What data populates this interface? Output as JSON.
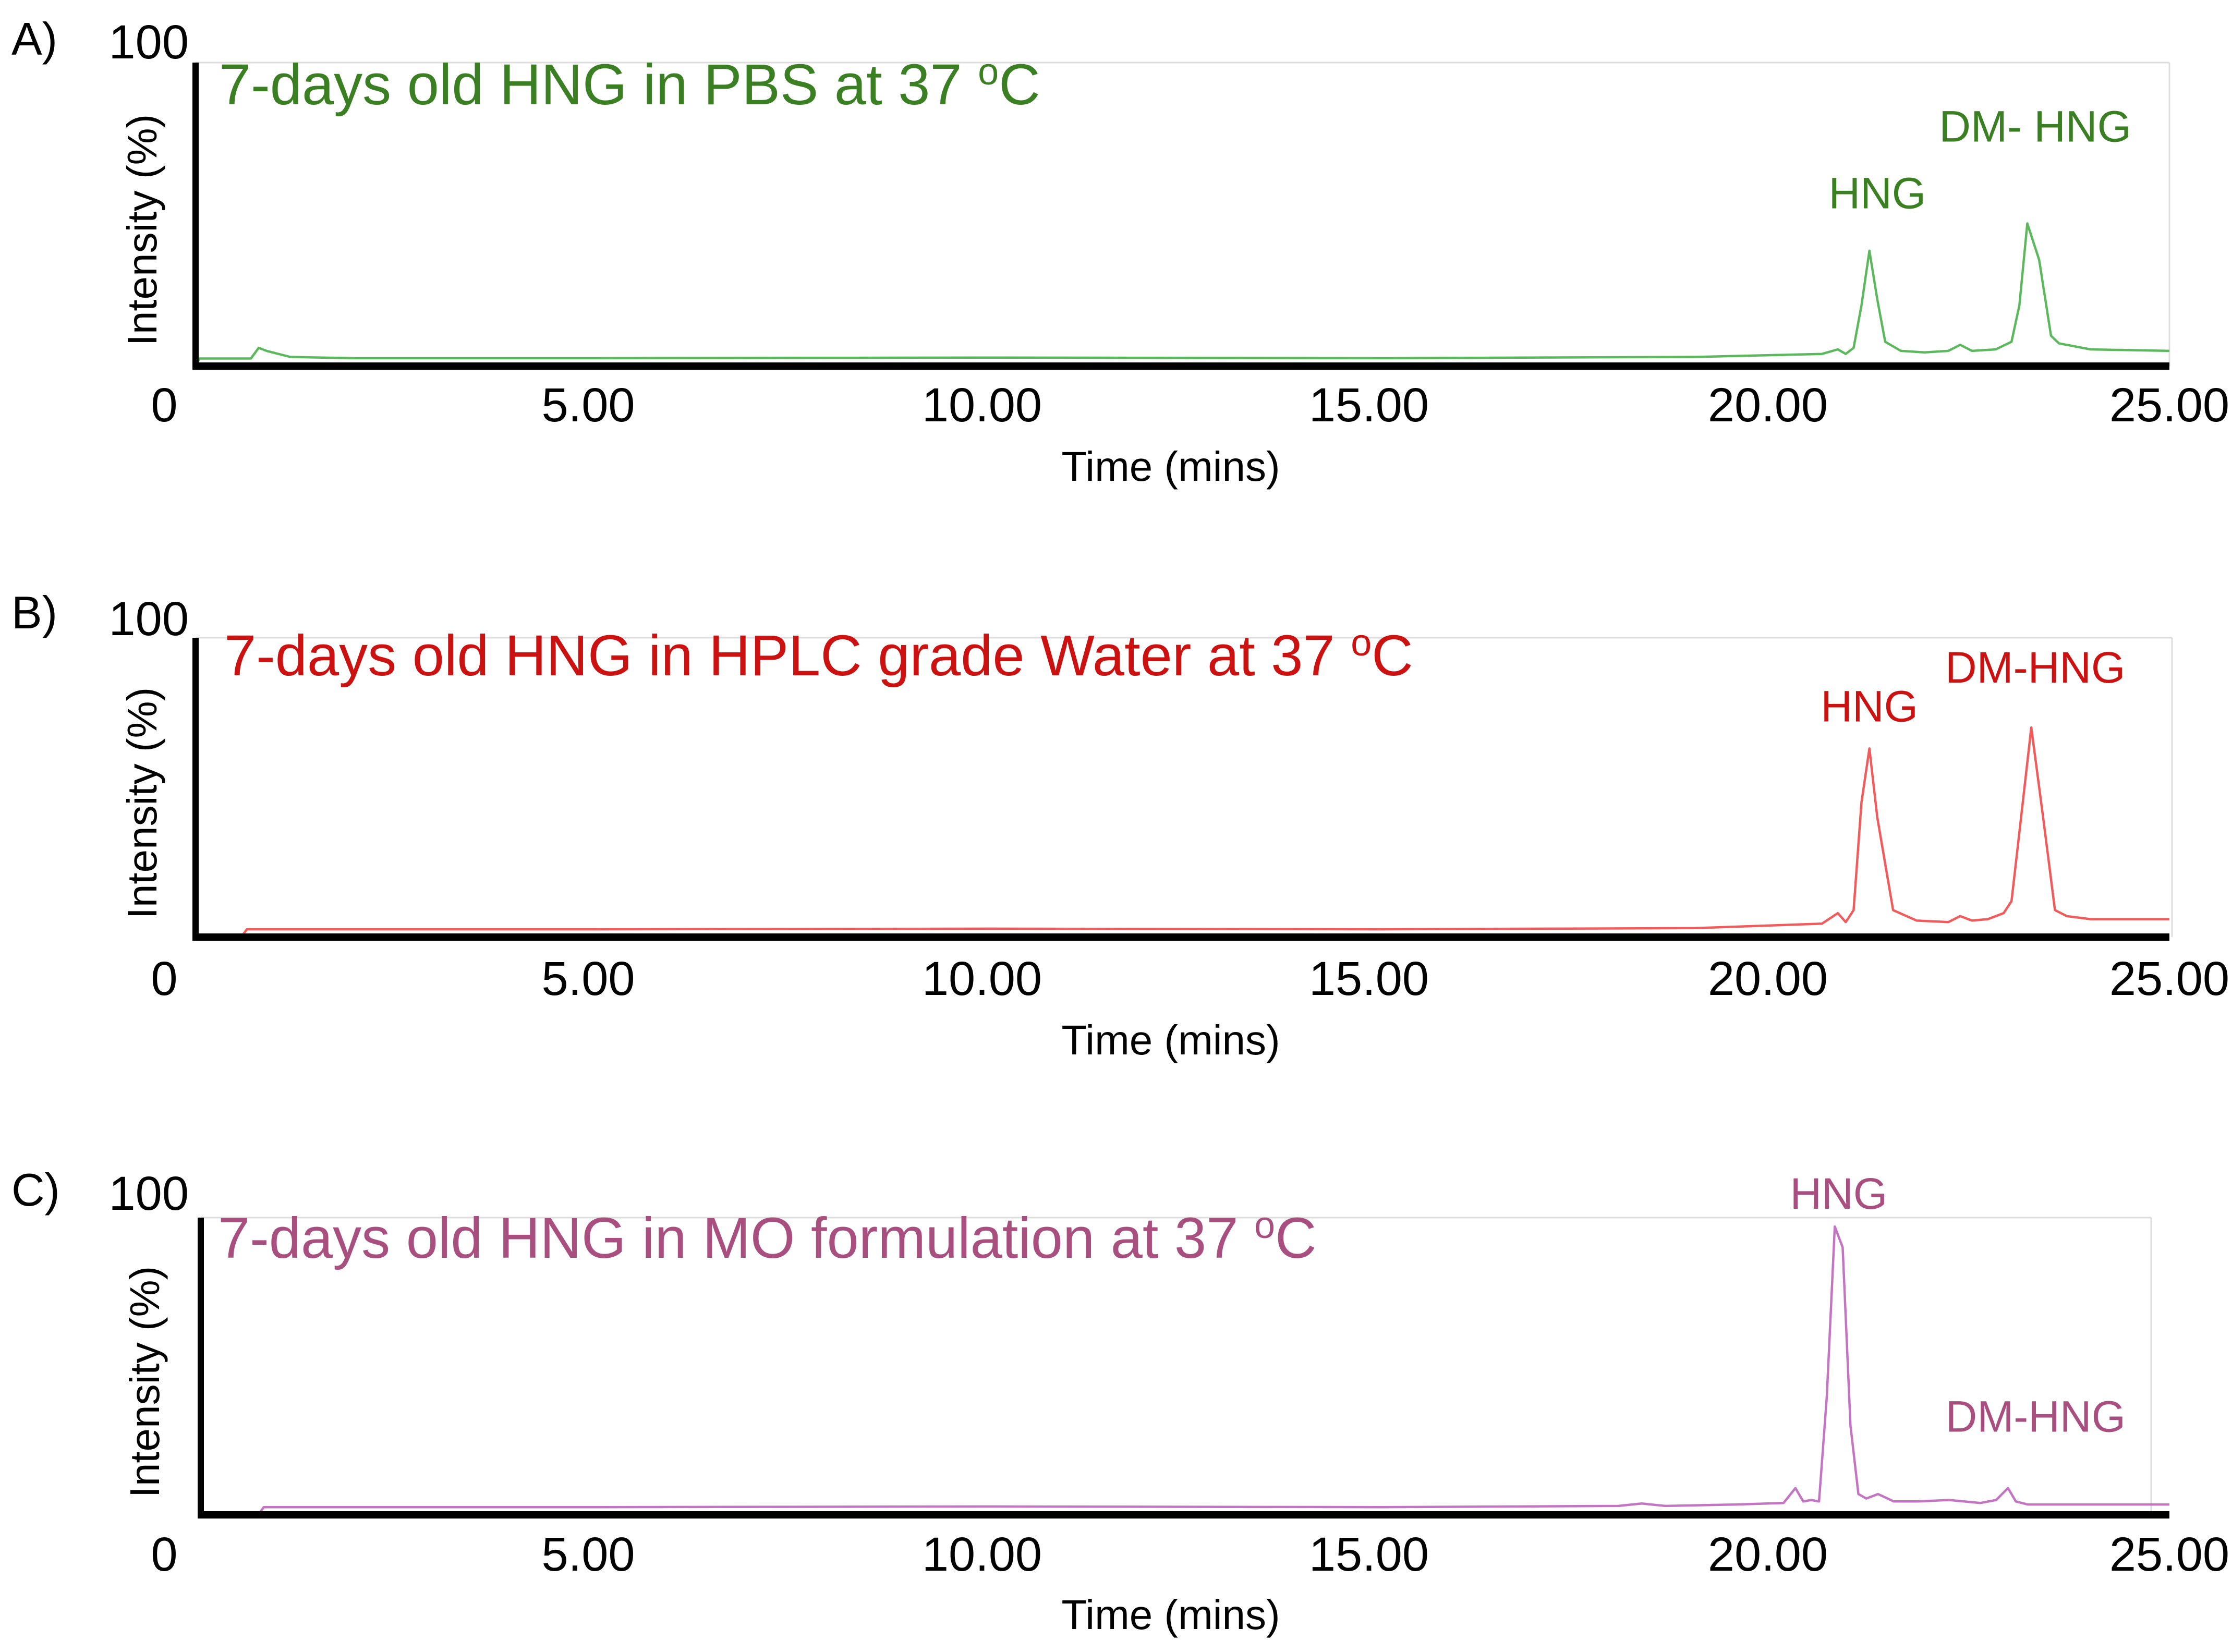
{
  "chart_data": [
    {
      "type": "line",
      "panel_label": "A)",
      "title": "7-days old HNG in PBS at 37 oC",
      "title_color": "#3a7f22",
      "line_color": "#5cb85c",
      "xlabel": "Time (mins)",
      "ylabel": "Intensity (%)",
      "xlim": [
        0,
        25
      ],
      "ylim": [
        0,
        100
      ],
      "x_tick_labels": [
        "0",
        "5.00",
        "10.00",
        "15.00",
        "20.00",
        "25.00"
      ],
      "y_tick_label": "100",
      "annotations": [
        {
          "text": "HNG",
          "x": 21.3,
          "y": 52
        },
        {
          "text": "DM- HNG",
          "x": 23.3,
          "y": 74
        }
      ],
      "x": [
        0.0,
        0.05,
        0.7,
        0.8,
        0.9,
        1.2,
        2.0,
        5.0,
        10.0,
        15.0,
        19.0,
        20.6,
        20.8,
        20.9,
        21.0,
        21.1,
        21.2,
        21.3,
        21.4,
        21.6,
        21.9,
        22.2,
        22.35,
        22.5,
        22.8,
        23.0,
        23.1,
        23.2,
        23.35,
        23.5,
        23.6,
        23.8,
        24.0,
        25.0
      ],
      "series": [
        {
          "values": [
            0,
            2.5,
            2.5,
            6,
            5,
            3,
            2.6,
            2.6,
            2.8,
            2.6,
            3.0,
            4.0,
            5.5,
            4,
            6,
            20,
            38,
            22,
            8,
            5,
            4.5,
            5,
            7,
            5,
            5.5,
            8,
            20,
            47,
            35,
            10,
            7.5,
            6.5,
            5.5,
            5
          ]
        }
      ]
    },
    {
      "type": "line",
      "panel_label": "B)",
      "title": "7-days old HNG in HPLC grade Water at 37 oC",
      "title_color": "#cc1111",
      "line_color": "#f25b5b",
      "xlabel": "Time (mins)",
      "ylabel": "Intensity (%)",
      "xlim": [
        0,
        25
      ],
      "ylim": [
        0,
        100
      ],
      "x_tick_labels": [
        "0",
        "5.00",
        "10.00",
        "15.00",
        "20.00",
        "25.00"
      ],
      "y_tick_label": "100",
      "annotations": [
        {
          "text": "HNG",
          "x": 21.2,
          "y": 72
        },
        {
          "text": "DM-HNG",
          "x": 23.3,
          "y": 85
        }
      ],
      "x": [
        0.0,
        0.6,
        0.65,
        1.0,
        5.0,
        10.0,
        15.0,
        19.0,
        20.6,
        20.8,
        20.9,
        21.0,
        21.1,
        21.2,
        21.3,
        21.5,
        21.8,
        22.2,
        22.35,
        22.5,
        22.7,
        22.9,
        23.0,
        23.1,
        23.25,
        23.4,
        23.55,
        23.7,
        24.0,
        25.0
      ],
      "series": [
        {
          "values": [
            0.8,
            0.8,
            2.6,
            2.6,
            2.6,
            2.8,
            2.6,
            3.0,
            4.5,
            8,
            5,
            9,
            45,
            63,
            40,
            9,
            5.5,
            5,
            7,
            5.5,
            6,
            8,
            12,
            35,
            70,
            40,
            9,
            7,
            6,
            6
          ]
        }
      ]
    },
    {
      "type": "line",
      "panel_label": "C)",
      "title": "7-days old HNG in MO formulation at 37 oC",
      "title_color": "#a94f7f",
      "line_color": "#c374c3",
      "xlabel": "Time (mins)",
      "ylabel": "Intensity (%)",
      "xlim": [
        0,
        25
      ],
      "ylim": [
        0,
        100
      ],
      "x_tick_labels": [
        "0",
        "5.00",
        "10.00",
        "15.00",
        "20.00",
        "25.00"
      ],
      "y_tick_label": "100",
      "annotations": [
        {
          "text": "HNG",
          "x": 20.8,
          "y": 103
        },
        {
          "text": "DM-HNG",
          "x": 23.3,
          "y": 28
        }
      ],
      "x": [
        0.0,
        0.75,
        0.8,
        1.0,
        5.0,
        10.0,
        15.0,
        18.0,
        18.3,
        18.6,
        19.5,
        20.1,
        20.25,
        20.35,
        20.45,
        20.55,
        20.65,
        20.75,
        20.85,
        20.95,
        21.05,
        21.15,
        21.3,
        21.5,
        21.8,
        22.2,
        22.6,
        22.8,
        22.95,
        23.05,
        23.2,
        23.4,
        24.0,
        25.0
      ],
      "series": [
        {
          "values": [
            0.8,
            0.8,
            2.6,
            2.6,
            2.6,
            2.8,
            2.6,
            3.0,
            3.8,
            3.0,
            3.5,
            4.0,
            9,
            4.5,
            5,
            4.5,
            40,
            97,
            90,
            30,
            7,
            5.5,
            7,
            4.5,
            4.5,
            5,
            4.0,
            5,
            9,
            4.5,
            3.5,
            3.5,
            3.5,
            3.5
          ]
        }
      ]
    }
  ]
}
